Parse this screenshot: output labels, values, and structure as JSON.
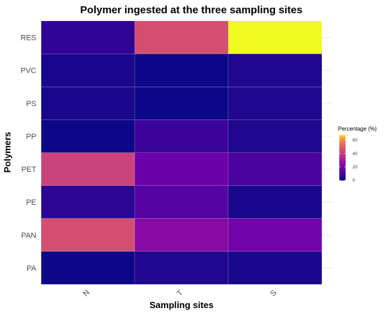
{
  "chart_data": {
    "type": "heatmap",
    "title": "Polymer ingested at the three sampling sites",
    "xlabel": "Sampling sites",
    "ylabel": "Polymers",
    "x_categories": [
      "N",
      "T",
      "S"
    ],
    "y_categories": [
      "RES",
      "PVC",
      "PS",
      "PP",
      "PET",
      "PE",
      "PAN",
      "PA"
    ],
    "values": {
      "RES": [
        6,
        45,
        68
      ],
      "PVC": [
        2,
        0,
        3
      ],
      "PS": [
        2,
        0,
        3
      ],
      "PP": [
        0,
        8,
        3
      ],
      "PET": [
        42,
        17,
        11
      ],
      "PE": [
        5,
        13,
        2
      ],
      "PAN": [
        45,
        24,
        19
      ],
      "PA": [
        0,
        3,
        2
      ]
    },
    "grid": true,
    "legend": {
      "title": "Percentage (%)",
      "position": "right",
      "ticks": [
        0,
        20,
        40,
        60
      ],
      "range": [
        0,
        68
      ],
      "colormap": "plasma"
    }
  }
}
